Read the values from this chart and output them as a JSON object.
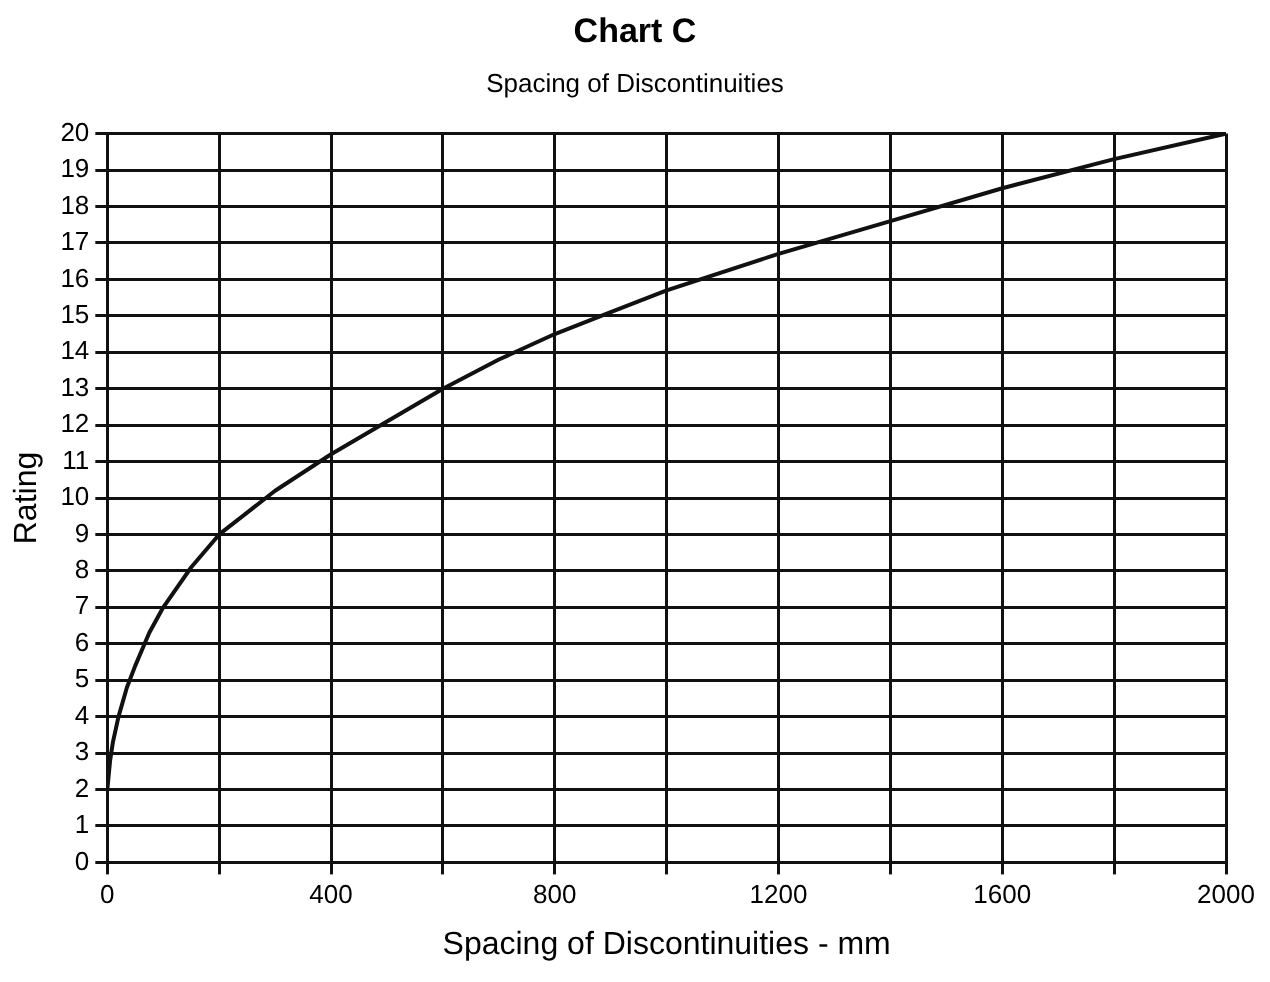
{
  "chart_data": {
    "type": "line",
    "title": "Chart C",
    "subtitle": "Spacing of Discontinuities",
    "xlabel": "Spacing of Discontinuities - mm",
    "ylabel": "Rating",
    "series": [
      {
        "color": "#111111",
        "x": [
          0,
          5,
          10,
          20,
          35,
          50,
          75,
          100,
          150,
          200,
          300,
          400,
          500,
          600,
          700,
          800,
          900,
          1000,
          1200,
          1400,
          1600,
          1800,
          2000
        ],
        "values": [
          2,
          2.8,
          3.3,
          4,
          4.8,
          5.4,
          6.3,
          7,
          8.1,
          9,
          10.2,
          11.2,
          12.1,
          13,
          13.8,
          14.5,
          15.1,
          15.7,
          16.7,
          17.6,
          18.5,
          19.3,
          20
        ]
      }
    ],
    "xlim": [
      0,
      2000
    ],
    "xticks": [
      0,
      {
        "value": 200,
        "label": null
      },
      400,
      {
        "value": 600,
        "label": null
      },
      800,
      {
        "value": 1000,
        "label": null
      },
      1200,
      {
        "value": 1400,
        "label": null
      },
      1600,
      {
        "value": 1800,
        "label": null
      },
      2000
    ],
    "ylim": [
      0,
      20
    ],
    "yticks": [
      0,
      1,
      2,
      3,
      4,
      5,
      6,
      7,
      8,
      9,
      10,
      11,
      12,
      13,
      14,
      15,
      16,
      17,
      18,
      19,
      20
    ],
    "grid": true,
    "legend": false,
    "marker": "none",
    "line_style": "solid"
  }
}
